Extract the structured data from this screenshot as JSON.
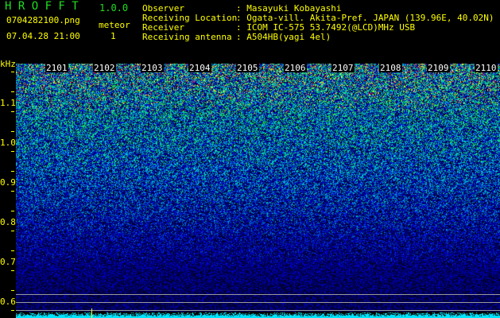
{
  "app": {
    "name": "H R O F F T",
    "version": "1.0.0",
    "file": "0704282100.png",
    "datetime": "07.04.28 21:00",
    "mode_label": "meteor",
    "count": "1"
  },
  "info": [
    {
      "label": "Observer",
      "value": "Masayuki Kobayashi"
    },
    {
      "label": "Receiving Location",
      "value": "Ogata-vill. Akita-Pref. JAPAN (139.96E, 40.02N)"
    },
    {
      "label": "Receiver",
      "value": "ICOM IC-575 53.7492(@LCD)MHz USB"
    },
    {
      "label": "Receiving antenna",
      "value": "A504HB(yagi 4el)"
    }
  ],
  "chart_data": {
    "type": "heatmap",
    "ylabel": "kHz",
    "yticks": [
      "1.1",
      "1.0",
      "0.9",
      "0.8",
      "0.7",
      "0.6"
    ],
    "ylim": [
      0.57,
      1.2
    ],
    "xticks": [
      "2101",
      "2102",
      "2103",
      "2104",
      "2105",
      "2106",
      "2107",
      "2108",
      "2109",
      "2110"
    ],
    "colors": {
      "low": "#000033",
      "mid": "#0000ff",
      "high": "#00ffff",
      "peak": "#00ff00",
      "max": "#ff0000"
    }
  }
}
